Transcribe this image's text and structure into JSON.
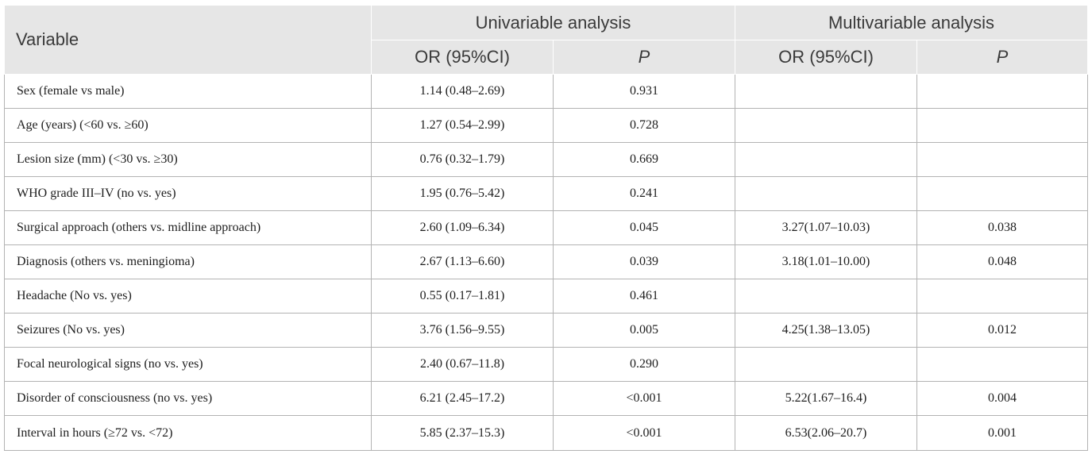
{
  "header": {
    "variable": "Variable",
    "univariable": "Univariable analysis",
    "multivariable": "Multivariable analysis",
    "or_label": "OR (95%CI)",
    "p_label": "P"
  },
  "rows": [
    {
      "variable": "Sex (female vs male)",
      "uni_or": "1.14 (0.48–2.69)",
      "uni_p": "0.931",
      "multi_or": "",
      "multi_p": ""
    },
    {
      "variable": "Age (years) (<60 vs. ≥60)",
      "uni_or": "1.27 (0.54–2.99)",
      "uni_p": "0.728",
      "multi_or": "",
      "multi_p": ""
    },
    {
      "variable": "Lesion size (mm) (<30 vs. ≥30)",
      "uni_or": "0.76 (0.32–1.79)",
      "uni_p": "0.669",
      "multi_or": "",
      "multi_p": ""
    },
    {
      "variable": "WHO grade III–IV (no vs. yes)",
      "uni_or": "1.95 (0.76–5.42)",
      "uni_p": "0.241",
      "multi_or": "",
      "multi_p": ""
    },
    {
      "variable": "Surgical approach (others vs. midline approach)",
      "uni_or": "2.60 (1.09–6.34)",
      "uni_p": "0.045",
      "multi_or": "3.27(1.07–10.03)",
      "multi_p": "0.038"
    },
    {
      "variable": "Diagnosis (others vs. meningioma)",
      "uni_or": "2.67 (1.13–6.60)",
      "uni_p": "0.039",
      "multi_or": "3.18(1.01–10.00)",
      "multi_p": "0.048"
    },
    {
      "variable": "Headache (No vs. yes)",
      "uni_or": "0.55 (0.17–1.81)",
      "uni_p": "0.461",
      "multi_or": "",
      "multi_p": ""
    },
    {
      "variable": "Seizures (No vs. yes)",
      "uni_or": "3.76 (1.56–9.55)",
      "uni_p": "0.005",
      "multi_or": "4.25(1.38–13.05)",
      "multi_p": "0.012"
    },
    {
      "variable": "Focal neurological signs (no vs. yes)",
      "uni_or": "2.40 (0.67–11.8)",
      "uni_p": "0.290",
      "multi_or": "",
      "multi_p": ""
    },
    {
      "variable": "Disorder of consciousness (no vs. yes)",
      "uni_or": "6.21 (2.45–17.2)",
      "uni_p": "<0.001",
      "multi_or": "5.22(1.67–16.4)",
      "multi_p": "0.004"
    },
    {
      "variable": "Interval in hours (≥72 vs. <72)",
      "uni_or": "5.85 (2.37–15.3)",
      "uni_p": "<0.001",
      "multi_or": "6.53(2.06–20.7)",
      "multi_p": "0.001"
    }
  ]
}
